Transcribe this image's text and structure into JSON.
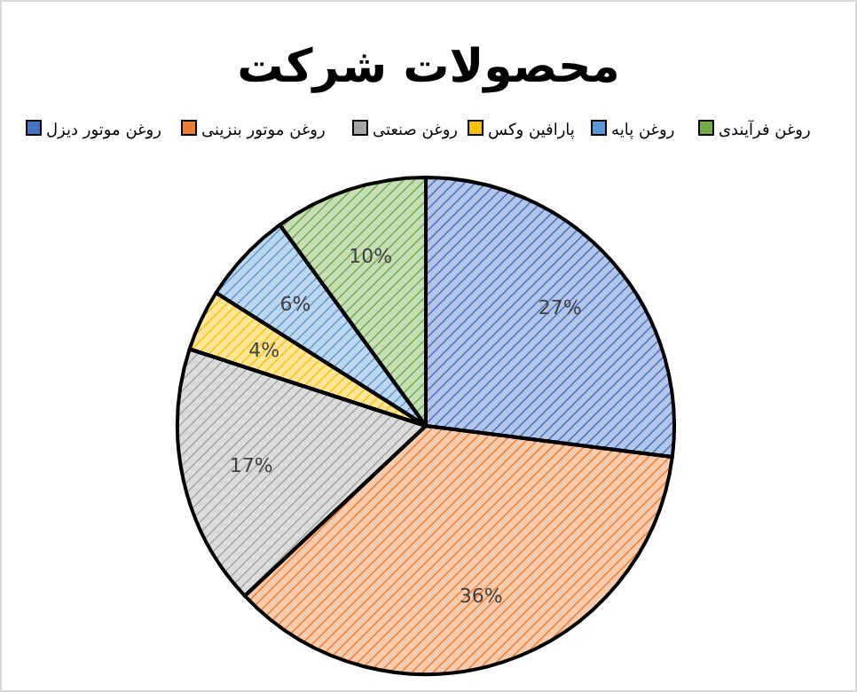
{
  "chart_data": {
    "type": "pie",
    "title": "محصولات شرکت",
    "categories": [
      "روغن موتور دیزل",
      "روغن موتور بنزینی",
      "روغن صنعتی",
      "پارافین وکس",
      "روغن پایه",
      "روغن فرآیندی"
    ],
    "values": [
      27,
      36,
      17,
      4,
      6,
      10
    ],
    "value_labels": [
      "27%",
      "36%",
      "17%",
      "4%",
      "6%",
      "10%"
    ],
    "colors": [
      "#4472c4",
      "#ed7d31",
      "#a5a5a5",
      "#ffc000",
      "#5b9bd5",
      "#70ad47"
    ],
    "legend": "top"
  }
}
